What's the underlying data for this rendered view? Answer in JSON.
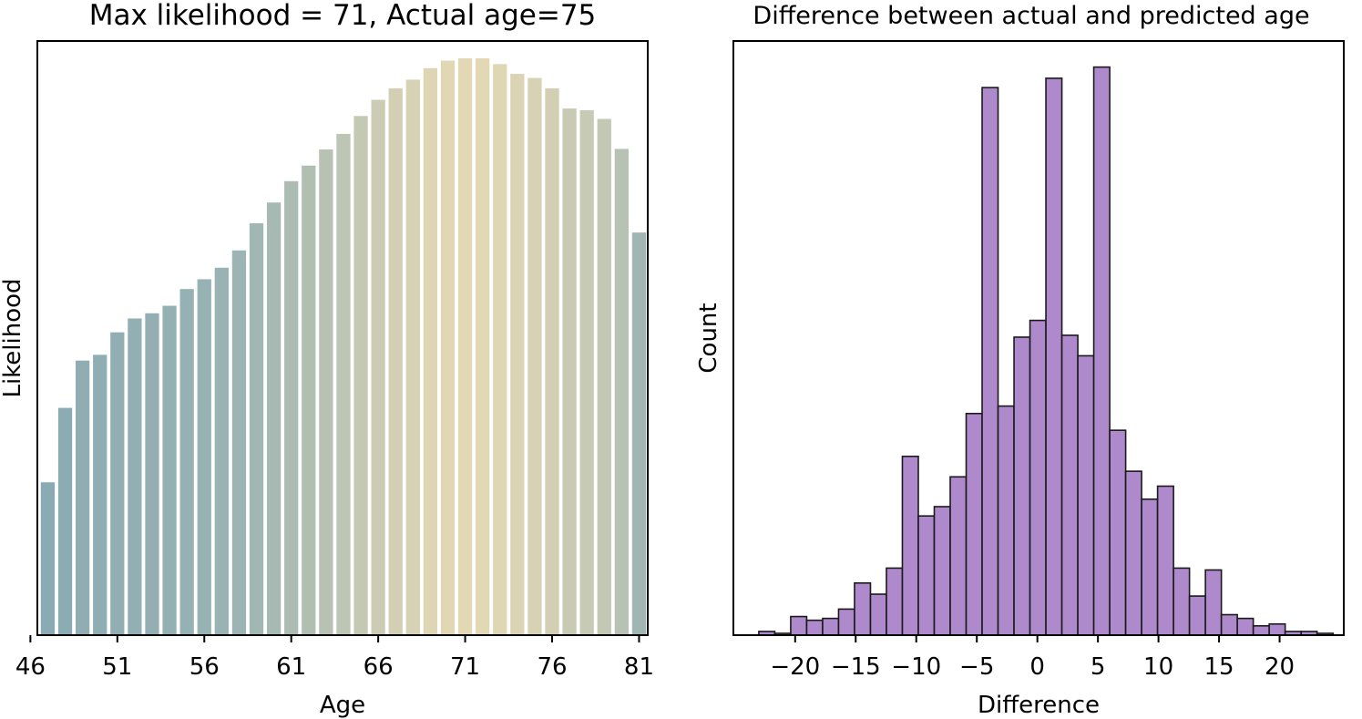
{
  "chart_data": [
    {
      "type": "bar",
      "title": "Max likelihood = 71, Actual age=75",
      "xlabel": "Age",
      "ylabel": "Likelihood",
      "x": [
        47,
        48,
        49,
        50,
        51,
        52,
        53,
        54,
        55,
        56,
        57,
        58,
        59,
        60,
        61,
        62,
        63,
        64,
        65,
        66,
        67,
        68,
        69,
        70,
        71,
        72,
        73,
        74,
        75,
        76,
        77,
        78,
        79,
        80,
        81
      ],
      "values": [
        0.265,
        0.394,
        0.476,
        0.486,
        0.525,
        0.549,
        0.558,
        0.571,
        0.6,
        0.617,
        0.637,
        0.667,
        0.714,
        0.75,
        0.787,
        0.814,
        0.842,
        0.869,
        0.9,
        0.928,
        0.948,
        0.963,
        0.983,
        0.996,
        1.0,
        1.0,
        0.99,
        0.973,
        0.966,
        0.948,
        0.913,
        0.91,
        0.895,
        0.843,
        0.698
      ],
      "xticks": [
        "46",
        "51",
        "56",
        "61",
        "66",
        "71",
        "76",
        "81"
      ],
      "xlim": [
        46.4,
        81.5
      ],
      "ylim": [
        0,
        1.03
      ],
      "colors": {
        "low": "#8aabb3",
        "high": "#e3d8b4"
      },
      "grid": false
    },
    {
      "type": "bar",
      "title": "Difference between actual and predicted age",
      "xlabel": "Difference",
      "ylabel": "Count",
      "bins_start": -23,
      "bin_width": 1.317,
      "counts": [
        2,
        1,
        10,
        8,
        9,
        14,
        28,
        22,
        36,
        96,
        64,
        69,
        85,
        119,
        294,
        123,
        160,
        169,
        299,
        161,
        150,
        305,
        110,
        88,
        73,
        80,
        36,
        21,
        35,
        11,
        9,
        5,
        6,
        2,
        2,
        1
      ],
      "xticks": [
        "−20",
        "−15",
        "−10",
        "−5",
        "0",
        "5",
        "10",
        "15",
        "20"
      ],
      "xtick_values": [
        -20,
        -15,
        -10,
        -5,
        0,
        5,
        10,
        15,
        20
      ],
      "xlim": [
        -25.1,
        25.3
      ],
      "ylim": [
        0,
        319
      ],
      "color": "#ae8acc",
      "edgecolor": "#1a1a1a",
      "grid": false
    }
  ]
}
